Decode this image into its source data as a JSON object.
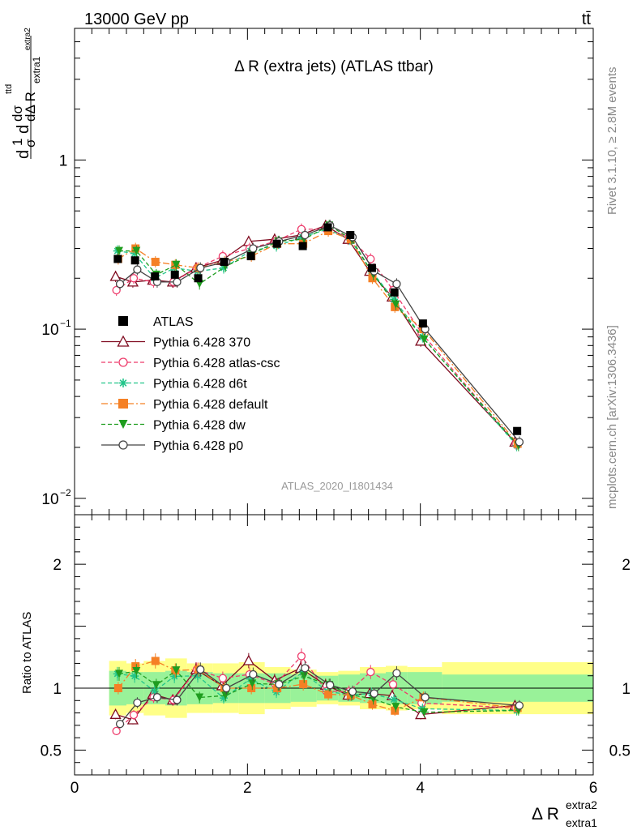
{
  "header": {
    "energy_label": "13000 GeV pp",
    "process_label": "tt̄",
    "rivet_label": "Rivet 3.1.10, ≥ 2.8M events",
    "mcplots_label": "mcplots.cern.ch [arXiv:1306.3436]",
    "analysis_id": "ATLAS_2020_I1801434"
  },
  "chart_data": {
    "type": "line",
    "title": "Δ R (extra jets) (ATLAS ttbar)",
    "ylabel": "1/σ dσ^{ttd}/dΔ R_{extra1}^{extra2}",
    "ylabel_parts": {
      "a": "d",
      "b": "1",
      "c": "σ",
      "d": "d",
      "e": "dσ",
      "f": "ttd",
      "g": "dΔ R",
      "h": "extra1",
      "i": "extra2"
    },
    "xlabel": "Δ R",
    "xlabel_sup": "extra2",
    "xlabel_sub": "extra1",
    "ratio_ylabel": "Ratio to ATLAS",
    "xlim": [
      0,
      6
    ],
    "ylim": [
      0.008,
      6
    ],
    "yscale": "log",
    "ratio_ylim": [
      0.3,
      2.4
    ],
    "x_ticks": [
      "0",
      "2",
      "4",
      "6"
    ],
    "x_tick_values": [
      0,
      2,
      4,
      6
    ],
    "y_ticks": [
      {
        "value": 1,
        "label": "1"
      },
      {
        "value": 0.1,
        "label": "10",
        "exp": "−1"
      },
      {
        "value": 0.01,
        "label": "10",
        "exp": "−2"
      }
    ],
    "ratio_ticks": [
      {
        "value": 2,
        "label": "2"
      },
      {
        "value": 1,
        "label": "1"
      },
      {
        "value": 0.5,
        "label": "0.5"
      }
    ],
    "x": [
      0.5,
      0.7,
      0.93,
      1.16,
      1.43,
      1.73,
      2.04,
      2.34,
      2.64,
      2.93,
      3.19,
      3.44,
      3.7,
      4.03,
      5.12
    ],
    "band_edges": [
      0.4,
      0.6,
      0.8,
      1.05,
      1.3,
      1.6,
      1.9,
      2.2,
      2.5,
      2.8,
      3.05,
      3.3,
      3.6,
      3.85,
      4.25,
      6.0
    ],
    "band_stat": [
      0.14,
      0.13,
      0.13,
      0.14,
      0.13,
      0.12,
      0.12,
      0.12,
      0.11,
      0.1,
      0.11,
      0.12,
      0.13,
      0.13,
      0.11
    ],
    "band_total": [
      0.22,
      0.2,
      0.22,
      0.24,
      0.2,
      0.2,
      0.21,
      0.17,
      0.15,
      0.13,
      0.14,
      0.17,
      0.18,
      0.17,
      0.21
    ],
    "data": {
      "name": "ATLAS",
      "color": "#000000",
      "values": [
        0.26,
        0.255,
        0.205,
        0.21,
        0.2,
        0.25,
        0.27,
        0.32,
        0.31,
        0.4,
        0.36,
        0.23,
        0.165,
        0.108,
        0.025
      ]
    },
    "series": [
      {
        "name": "Pythia 6.428 370",
        "color": "#7f0a1f",
        "marker": "triangle-open",
        "dash": "",
        "values": [
          0.205,
          0.19,
          0.195,
          0.19,
          0.23,
          0.255,
          0.33,
          0.34,
          0.36,
          0.41,
          0.34,
          0.22,
          0.155,
          0.085,
          0.0215
        ]
      },
      {
        "name": "Pythia 6.428 atlas-csc",
        "color": "#ee3b6b",
        "marker": "circle-open",
        "dash": "5,3",
        "values": [
          0.17,
          0.2,
          0.19,
          0.19,
          0.23,
          0.27,
          0.3,
          0.33,
          0.39,
          0.39,
          0.35,
          0.26,
          0.17,
          0.095,
          0.021
        ]
      },
      {
        "name": "Pythia 6.428 d6t",
        "color": "#22c58a",
        "marker": "star",
        "dash": "5,3",
        "values": [
          0.29,
          0.28,
          0.2,
          0.23,
          0.22,
          0.23,
          0.29,
          0.31,
          0.35,
          0.39,
          0.34,
          0.22,
          0.15,
          0.09,
          0.0205
        ]
      },
      {
        "name": "Pythia 6.428 default",
        "color": "#f58025",
        "marker": "square",
        "dash": "8,3,2,3",
        "values": [
          0.26,
          0.3,
          0.25,
          0.24,
          0.23,
          0.25,
          0.27,
          0.32,
          0.32,
          0.38,
          0.34,
          0.2,
          0.135,
          0.1,
          0.021
        ]
      },
      {
        "name": "Pythia 6.428 dw",
        "color": "#1f9d1f",
        "marker": "triangle-down",
        "dash": "5,3",
        "values": [
          0.29,
          0.29,
          0.21,
          0.24,
          0.185,
          0.235,
          0.28,
          0.33,
          0.34,
          0.41,
          0.34,
          0.21,
          0.14,
          0.087,
          0.0205
        ]
      },
      {
        "name": "Pythia 6.428 p0",
        "color": "#444444",
        "marker": "circle-open",
        "dash": "",
        "values": [
          0.185,
          0.225,
          0.19,
          0.19,
          0.23,
          0.25,
          0.3,
          0.33,
          0.36,
          0.41,
          0.35,
          0.22,
          0.185,
          0.1,
          0.0215
        ]
      }
    ]
  }
}
